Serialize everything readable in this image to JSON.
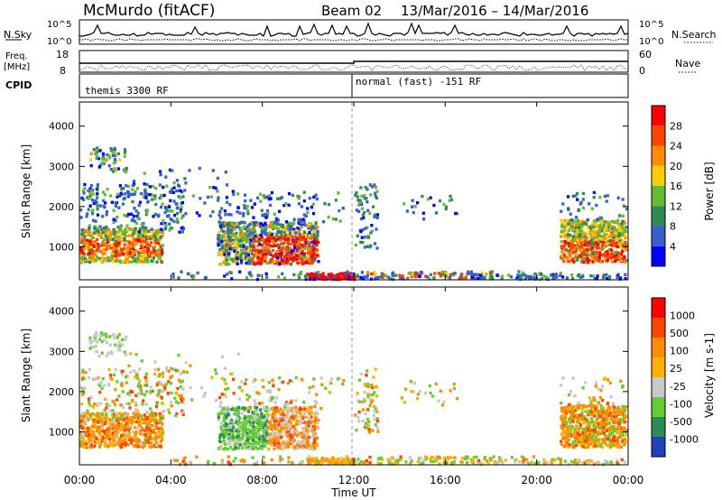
{
  "header": {
    "station": "McMurdo (fitACF)",
    "beam": "Beam 02",
    "date_range": "13/Mar/2016 – 14/Mar/2016"
  },
  "top_panels": {
    "nsky_label": "N.Sky",
    "nsky_ticks": [
      "10^5",
      "10^0"
    ],
    "nsearch_label": "N.Search",
    "nsearch_ticks": [
      "10^5",
      "10^0"
    ],
    "freq_label_1": "Freq.",
    "freq_label_2": "[MHz]",
    "freq_ticks": [
      "18",
      "8"
    ],
    "nave_label": "Nave",
    "nave_ticks": [
      "60",
      "0"
    ],
    "cpid_label": "CPID",
    "cpid_1": "themis 3300 RF",
    "cpid_2": "normal (fast) -151 RF"
  },
  "chart_data": [
    {
      "type": "heatmap",
      "quantity": "Power",
      "ylabel": "Slant Range [km]",
      "xlabel": "Time UT",
      "ylim": [
        180,
        4600
      ],
      "x_ticks": [
        "00:00",
        "04:00",
        "08:00",
        "12:00",
        "16:00",
        "20:00",
        "00:00"
      ],
      "y_ticks": [
        1000,
        2000,
        3000,
        4000
      ],
      "colorbar": {
        "label": "Power [dB]",
        "ticks": [
          "28",
          "24",
          "20",
          "16",
          "12",
          "8",
          "4"
        ],
        "colors": [
          "#0000ff",
          "#3a5fcd",
          "#2e8b57",
          "#66bb33",
          "#ffcc00",
          "#ff8c00",
          "#ff4500",
          "#ff0000"
        ]
      },
      "features": [
        {
          "x_hr": [
            0.0,
            3.6
          ],
          "range_km": [
            700,
            1500
          ],
          "level": "high"
        },
        {
          "x_hr": [
            6.0,
            10.4
          ],
          "range_km": [
            650,
            1650
          ],
          "level": "max"
        },
        {
          "x_hr": [
            9.9,
            12.0
          ],
          "range_km": [
            200,
            400
          ],
          "level": "max"
        },
        {
          "x_hr": [
            21.0,
            24.0
          ],
          "range_km": [
            700,
            1700
          ],
          "level": "high"
        },
        {
          "x_hr": [
            0.5,
            2.0
          ],
          "range_km": [
            2900,
            3500
          ],
          "level": "low"
        }
      ]
    },
    {
      "type": "heatmap",
      "quantity": "Velocity",
      "ylabel": "Slant Range [km]",
      "xlabel": "Time UT",
      "ylim": [
        180,
        4600
      ],
      "x_ticks": [
        "00:00",
        "04:00",
        "08:00",
        "12:00",
        "16:00",
        "20:00",
        "00:00"
      ],
      "y_ticks": [
        1000,
        2000,
        3000,
        4000
      ],
      "colorbar": {
        "label": "Velocity [m s-1]",
        "ticks": [
          "1000",
          "500",
          "100",
          "25",
          "-25",
          "-100",
          "-500",
          "-1000"
        ],
        "colors": [
          "#2040c0",
          "#2e8b57",
          "#66cc33",
          "#c8c8c8",
          "#ffb000",
          "#ff8c00",
          "#ff4500",
          "#ff0000"
        ]
      }
    }
  ],
  "x_axis_label": "Time UT"
}
